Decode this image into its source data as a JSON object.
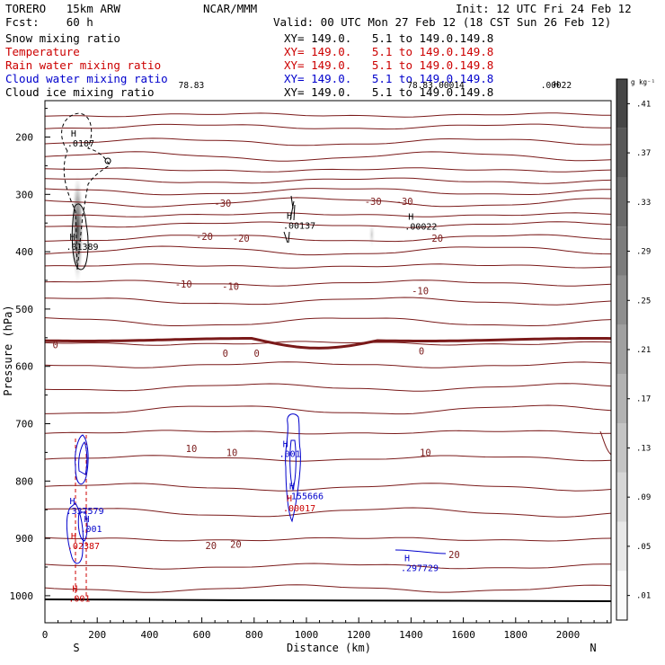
{
  "header": {
    "model_line": "TORERO   15km ARW",
    "center": "NCAR/MMM",
    "init": "Init: 12 UTC Fri 24 Feb 12",
    "fcst": "Fcst:    60 h",
    "valid": "Valid: 00 UTC Mon 27 Feb 12 (18 CST Sun 26 Feb 12)",
    "fields": [
      {
        "name": "Snow mixing ratio",
        "xy": "XY= 149.0.   5.1 to 149.0.149.8",
        "color": "#000000"
      },
      {
        "name": "Temperature",
        "xy": "XY= 149.0.   5.1 to 149.0.149.8",
        "color": "#cc0000"
      },
      {
        "name": "Rain water mixing ratio",
        "xy": "XY= 149.0.   5.1 to 149.0.149.8",
        "color": "#cc0000"
      },
      {
        "name": "Cloud water mixing ratio",
        "xy": "XY= 149.0.   5.1 to 149.0.149.8",
        "color": "#0000cc"
      },
      {
        "name": "Cloud ice mixing ratio",
        "xy": "XY= 149.0.   5.1 to 149.0.149.8",
        "color": "#000000"
      }
    ]
  },
  "chart_data": {
    "type": "cross-section contour",
    "xlabel": "Distance (km)",
    "ylabel": "Pressure (hPa)",
    "xlim": [
      0,
      2170
    ],
    "ylim": [
      1020,
      140
    ],
    "x_ticks": [
      0,
      200,
      400,
      600,
      800,
      1000,
      1200,
      1400,
      1600,
      1800,
      2000
    ],
    "y_ticks": [
      200,
      300,
      400,
      500,
      600,
      700,
      800,
      900,
      1000
    ],
    "end_labels": {
      "left": "S",
      "right": "N"
    },
    "colorbar": {
      "unit": "g kg⁻¹",
      "ticks": [
        ".01",
        ".05",
        ".09",
        ".13",
        ".17",
        ".21",
        ".25",
        ".29",
        ".33",
        ".37",
        ".41"
      ]
    },
    "temperature_labels": [
      {
        "text": "-30",
        "x": 680,
        "p": 315
      },
      {
        "text": "-30",
        "x": 1255,
        "p": 312
      },
      {
        "text": "-30",
        "x": 1375,
        "p": 312
      },
      {
        "text": "-20",
        "x": 610,
        "p": 373
      },
      {
        "text": "-20",
        "x": 750,
        "p": 376
      },
      {
        "text": "-20",
        "x": 1490,
        "p": 376
      },
      {
        "text": "-10",
        "x": 530,
        "p": 456
      },
      {
        "text": "-10",
        "x": 710,
        "p": 460
      },
      {
        "text": "-10",
        "x": 1435,
        "p": 468
      },
      {
        "text": "0",
        "x": 40,
        "p": 562
      },
      {
        "text": "0",
        "x": 690,
        "p": 577
      },
      {
        "text": "0",
        "x": 810,
        "p": 577
      },
      {
        "text": "0",
        "x": 1440,
        "p": 573
      },
      {
        "text": "10",
        "x": 560,
        "p": 743
      },
      {
        "text": "10",
        "x": 715,
        "p": 750
      },
      {
        "text": "10",
        "x": 1455,
        "p": 750
      },
      {
        "text": "20",
        "x": 635,
        "p": 912
      },
      {
        "text": "20",
        "x": 730,
        "p": 910
      },
      {
        "text": "20",
        "x": 1565,
        "p": 928
      }
    ],
    "maxima": [
      {
        "text": ".0107",
        "x": 120,
        "p": 212,
        "color": "#000000"
      },
      {
        "text": ".01389",
        "x": 115,
        "p": 392,
        "color": "#000000"
      },
      {
        "text": ".00137",
        "x": 945,
        "p": 355,
        "color": "#000000"
      },
      {
        "text": ".00022",
        "x": 1410,
        "p": 357,
        "color": "#000000"
      },
      {
        "text": ".001",
        "x": 930,
        "p": 753,
        "color": "#0000cc"
      },
      {
        "text": ".155666",
        "x": 955,
        "p": 827,
        "color": "#0000cc"
      },
      {
        "text": ".00017",
        "x": 945,
        "p": 848,
        "color": "#cc0000"
      },
      {
        "text": ".337579",
        "x": 115,
        "p": 853,
        "color": "#0000cc"
      },
      {
        "text": ".001",
        "x": 170,
        "p": 884,
        "color": "#0000cc"
      },
      {
        "text": ".02387",
        "x": 120,
        "p": 914,
        "color": "#cc0000"
      },
      {
        "text": ".297729",
        "x": 1395,
        "p": 952,
        "color": "#0000cc"
      },
      {
        "text": ".001",
        "x": 125,
        "p": 1006,
        "color": "#cc0000"
      }
    ],
    "top_labels": [
      {
        "text": "78.83",
        "x": 560
      },
      {
        "text": ".00014",
        "x": 1545
      },
      {
        "text": ".00022",
        "x": 1955
      },
      {
        "text": "78.83",
        "x": 1435
      }
    ],
    "snow_shading": [
      {
        "x": 125,
        "p_top": 260,
        "p_bottom": 460,
        "max": 0.37
      },
      {
        "x": 1250,
        "p_top": 345,
        "p_bottom": 395,
        "max": 0.07
      }
    ]
  }
}
